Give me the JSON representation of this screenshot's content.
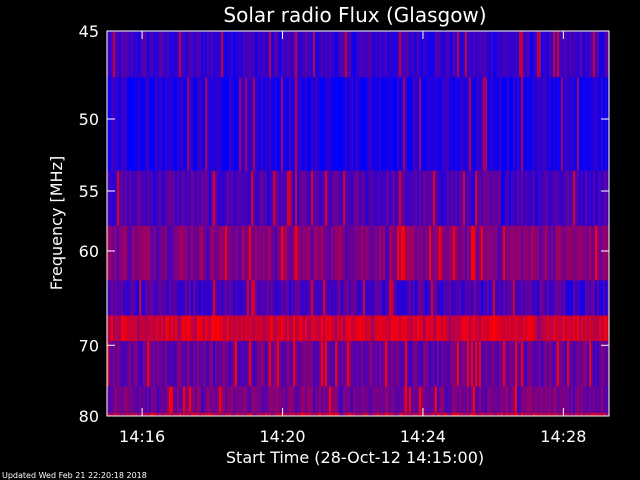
{
  "chart_data": {
    "type": "heatmap",
    "title": "Solar radio Flux (Glasgow)",
    "xlabel": "Start Time (28-Oct-12 14:15:00)",
    "ylabel": "Frequency [MHz]",
    "x_ticks": [
      "14:16",
      "14:20",
      "14:24",
      "14:28"
    ],
    "x_tick_minutes": [
      16,
      20,
      24,
      28
    ],
    "xlim_minutes": [
      15.0,
      29.3
    ],
    "y_ticks": [
      45,
      50,
      55,
      60,
      70,
      80
    ],
    "ylim": [
      45,
      80
    ],
    "y_scale": "reciprocal",
    "colors": {
      "low": "#0000ff",
      "high": "#ff0000",
      "background": "#000000",
      "axes": "#ffffff"
    },
    "bands": [
      {
        "from": 45.0,
        "to": 47.5,
        "intensity": 0.22
      },
      {
        "from": 47.5,
        "to": 53.5,
        "intensity": 0.12
      },
      {
        "from": 53.5,
        "to": 57.8,
        "intensity": 0.3
      },
      {
        "from": 57.8,
        "to": 62.8,
        "intensity": 0.52
      },
      {
        "from": 62.8,
        "to": 66.5,
        "intensity": 0.3
      },
      {
        "from": 66.5,
        "to": 69.5,
        "intensity": 0.82
      },
      {
        "from": 69.5,
        "to": 75.5,
        "intensity": 0.42
      },
      {
        "from": 75.5,
        "to": 79.5,
        "intensity": 0.46
      },
      {
        "from": 79.5,
        "to": 80.0,
        "intensity": 0.7
      }
    ]
  },
  "footer": "Updated Wed Feb 21 22:20:18 2018"
}
